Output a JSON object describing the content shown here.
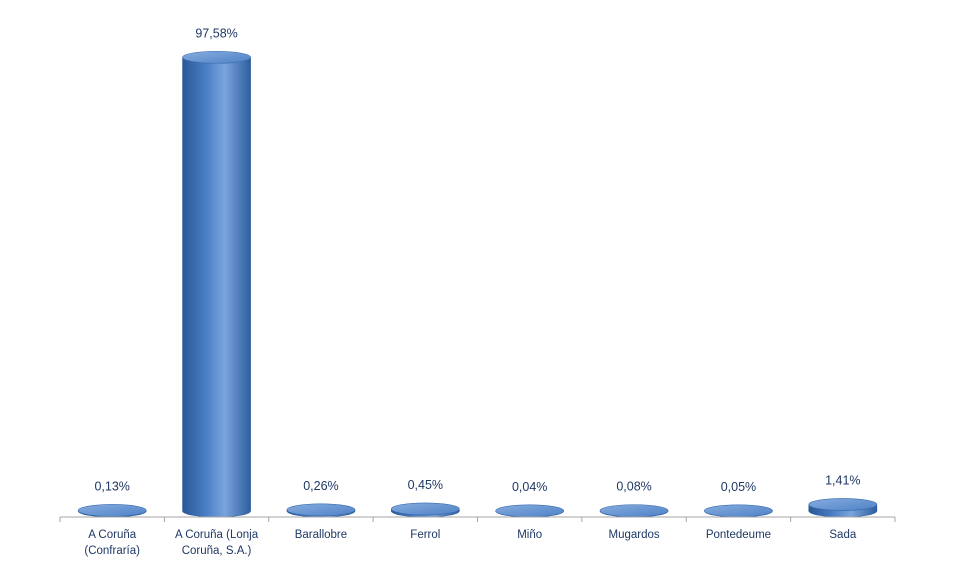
{
  "chart_data": {
    "type": "bar",
    "style": "3d-cylinder",
    "title": "",
    "xlabel": "",
    "ylabel": "",
    "ylim": [
      0,
      100
    ],
    "grid": false,
    "legend": "none",
    "categories": [
      [
        "A Coruña",
        "(Confraría)"
      ],
      [
        "A Coruña (Lonja",
        "Coruña, S.A.)"
      ],
      [
        "Barallobre"
      ],
      [
        "Ferrol"
      ],
      [
        "Miño"
      ],
      [
        "Mugardos"
      ],
      [
        "Pontedeume"
      ],
      [
        "Sada"
      ]
    ],
    "values": [
      0.13,
      97.58,
      0.26,
      0.45,
      0.04,
      0.08,
      0.05,
      1.41
    ],
    "data_labels": [
      "0,13%",
      "97,58%",
      "0,26%",
      "0,45%",
      "0,04%",
      "0,08%",
      "0,05%",
      "1,41%"
    ],
    "colors": {
      "bar_dark": "#2a5896",
      "bar_mid": "#4a7fc4",
      "bar_light": "#8fb4e6",
      "bar_top": "#6f9ad6",
      "axis": "#a6a6a6",
      "text": "#1f3864"
    }
  }
}
